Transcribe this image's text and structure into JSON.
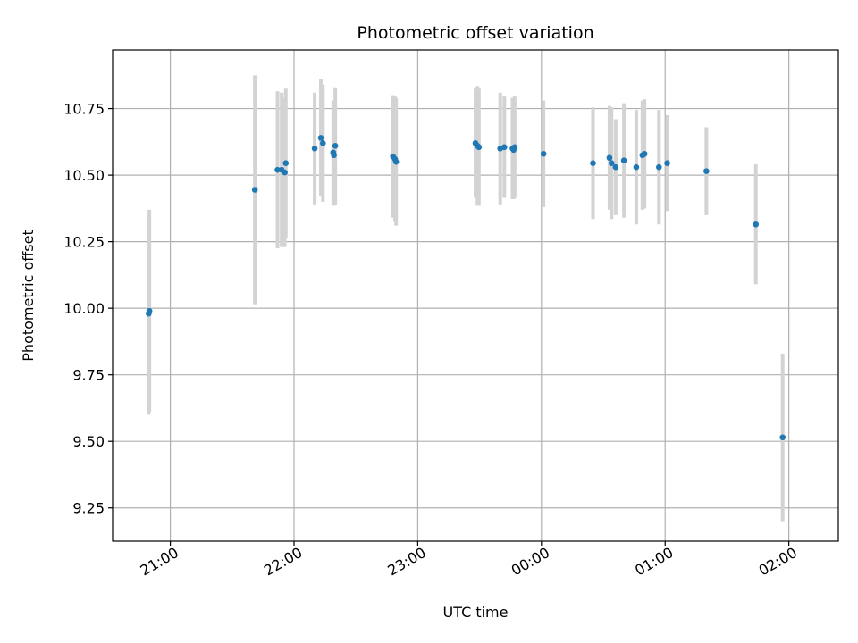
{
  "chart_data": {
    "type": "scatter",
    "title": "Photometric offset variation",
    "xlabel": "UTC time",
    "ylabel": "Photometric offset",
    "x_is_time": true,
    "xlim": [
      "20:32",
      "02:24"
    ],
    "ylim": [
      9.125,
      10.97
    ],
    "x_ticks": [
      "21:00",
      "22:00",
      "23:00",
      "00:00",
      "01:00",
      "02:00"
    ],
    "y_ticks": [
      9.25,
      9.5,
      9.75,
      10.0,
      10.25,
      10.5,
      10.75
    ],
    "y_tick_labels": [
      "9.25",
      "9.50",
      "9.75",
      "10.00",
      "10.25",
      "10.50",
      "10.75"
    ],
    "grid": true,
    "point_color": "#1f77b4",
    "errorbar_color": "#d3d3d3",
    "series": [
      {
        "x": [
          "20:49:30",
          "20:49:50",
          "21:41",
          "21:52",
          "21:54",
          "21:55:30",
          "21:56",
          "22:10",
          "22:13",
          "22:14",
          "22:19",
          "22:19:20",
          "22:20",
          "22:48",
          "22:49",
          "22:49:30",
          "23:28",
          "23:29",
          "23:29:40",
          "23:40",
          "23:42",
          "23:46",
          "23:46:30",
          "23:47",
          "00:01",
          "00:25",
          "00:33",
          "00:34",
          "00:36",
          "00:40",
          "00:46",
          "00:49",
          "00:50",
          "00:57",
          "01:01",
          "01:20",
          "01:44",
          "01:57"
        ],
        "y": [
          9.98,
          9.99,
          10.445,
          10.52,
          10.52,
          10.51,
          10.545,
          10.6,
          10.64,
          10.62,
          10.585,
          10.575,
          10.61,
          10.57,
          10.56,
          10.55,
          10.62,
          10.61,
          10.605,
          10.6,
          10.605,
          10.6,
          10.595,
          10.605,
          10.58,
          10.545,
          10.565,
          10.545,
          10.53,
          10.555,
          10.53,
          10.575,
          10.58,
          10.53,
          10.545,
          10.515,
          10.315,
          9.515
        ],
        "yerr": [
          0.38,
          0.38,
          0.43,
          0.295,
          0.29,
          0.28,
          0.28,
          0.21,
          0.22,
          0.22,
          0.195,
          0.19,
          0.22,
          0.23,
          0.235,
          0.24,
          0.205,
          0.225,
          0.22,
          0.21,
          0.19,
          0.19,
          0.185,
          0.19,
          0.2,
          0.21,
          0.195,
          0.21,
          0.18,
          0.215,
          0.215,
          0.205,
          0.205,
          0.215,
          0.18,
          0.165,
          0.225,
          0.315
        ]
      }
    ]
  }
}
